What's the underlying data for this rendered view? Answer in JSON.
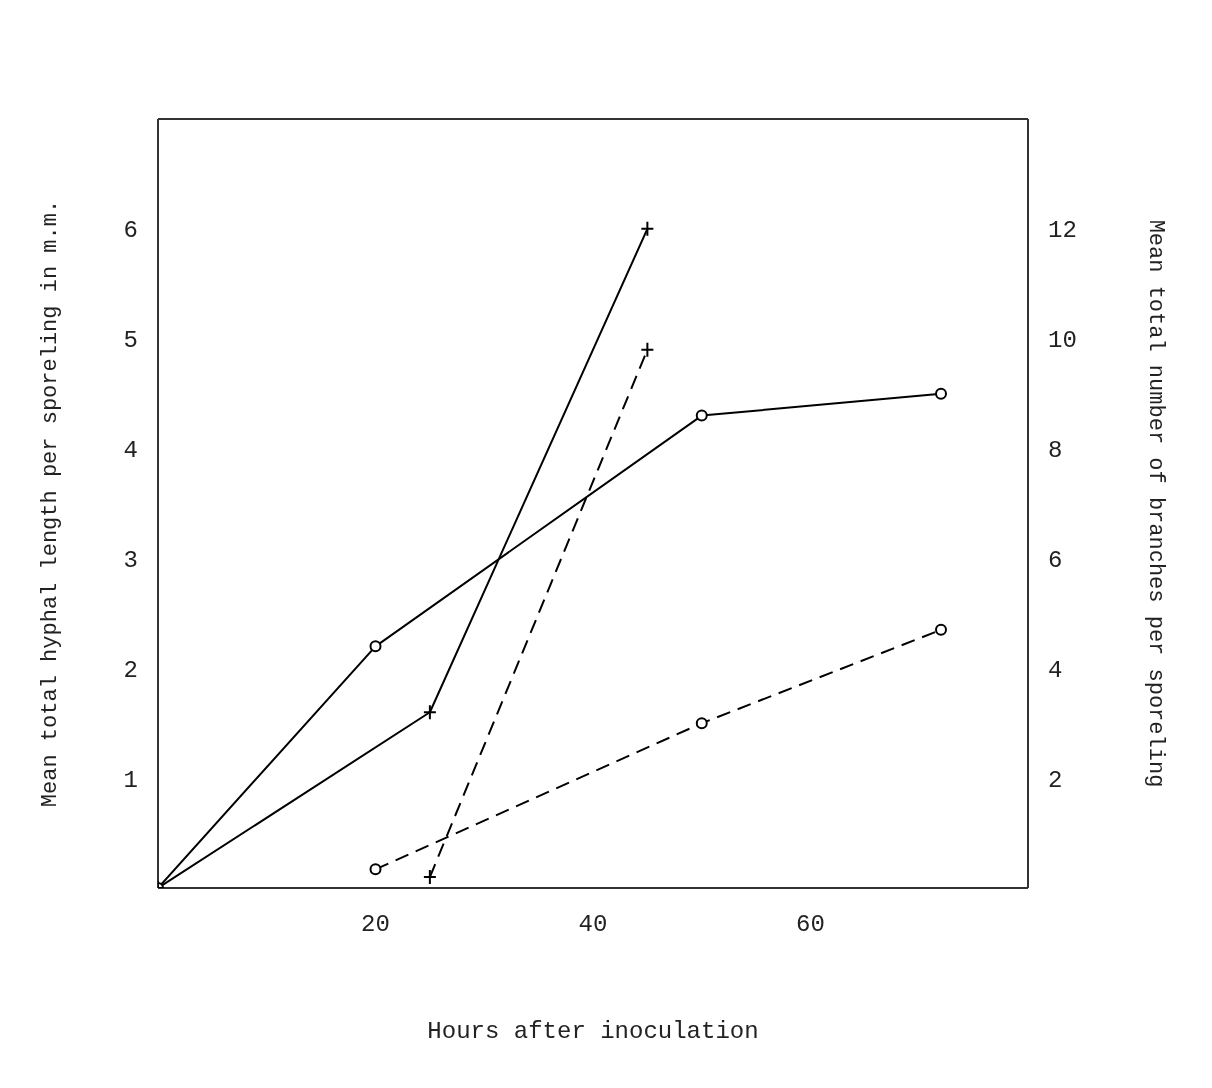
{
  "chart_data": {
    "type": "line",
    "xlabel": "Hours after inoculation",
    "ylabel": "Mean total hyphal length per sporeling in m.m.",
    "y2label": "Mean total number of branches per sporeling",
    "xlim": [
      0,
      80
    ],
    "xticks": [
      20,
      40,
      60
    ],
    "ylim": [
      0,
      7
    ],
    "yticks": [
      1,
      2,
      3,
      4,
      5,
      6
    ],
    "y2lim": [
      0,
      14
    ],
    "y2ticks": [
      2,
      4,
      6,
      8,
      10,
      12
    ],
    "series": [
      {
        "color": "#000000",
        "marker": "circle",
        "line_style": "solid",
        "x": [
          0,
          20,
          50,
          72
        ],
        "values": [
          0,
          2.2,
          4.3,
          4.5
        ]
      },
      {
        "color": "#000000",
        "marker": "circle",
        "line_style": "dashed",
        "x": [
          20,
          50,
          72
        ],
        "values": [
          0.17,
          1.5,
          2.35
        ]
      },
      {
        "color": "#000000",
        "marker": "cross",
        "line_style": "solid",
        "axis": "y2",
        "x": [
          0,
          25,
          45
        ],
        "values": [
          0,
          3.2,
          12
        ]
      },
      {
        "color": "#000000",
        "marker": "cross",
        "line_style": "dashed",
        "axis": "y2",
        "x": [
          25,
          45
        ],
        "values": [
          0.2,
          9.8
        ]
      }
    ]
  }
}
